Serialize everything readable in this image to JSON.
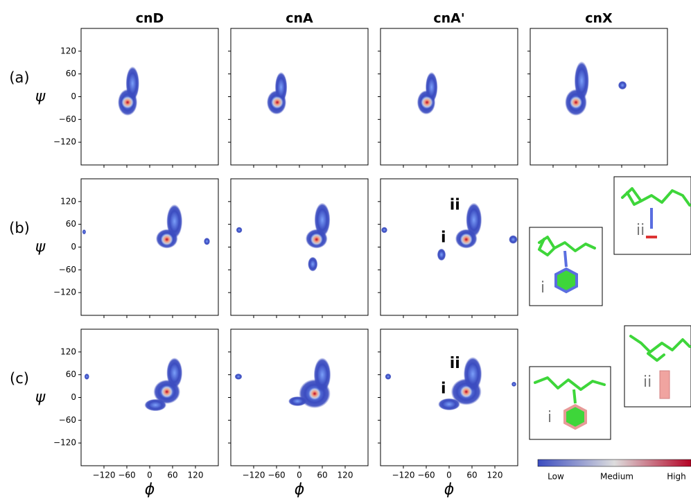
{
  "column_titles": [
    "cnD",
    "cnA",
    "cnA'",
    "cnX"
  ],
  "row_labels": [
    "(a)",
    "(b)",
    "(c)"
  ],
  "x_label": "ϕ",
  "y_label": "ψ",
  "axes": {
    "xlim": [
      -180,
      180
    ],
    "ylim": [
      -180,
      180
    ],
    "xticks": [
      {
        "value": -120,
        "label": "−120"
      },
      {
        "value": -60,
        "label": "−60"
      },
      0,
      60,
      120
    ],
    "yticks": [
      {
        "value": -120,
        "label": "−120"
      },
      {
        "value": -60,
        "label": "−60"
      },
      0,
      60,
      120
    ]
  },
  "colorbar": {
    "colormap": [
      "#3b4cc0",
      "#dddddd",
      "#b40426"
    ],
    "labels": [
      "Low",
      "Medium",
      "High"
    ]
  },
  "insets": [
    {
      "label": "i"
    },
    {
      "label": "ii"
    },
    {
      "label": "i"
    },
    {
      "label": "ii"
    }
  ],
  "chart_data": [
    {
      "type": "density",
      "peak": [
        -58,
        -15
      ],
      "clusters": [
        {
          "center": [
            -58,
            -15
          ],
          "spread": [
            16,
            22
          ]
        },
        {
          "center": [
            -45,
            35
          ],
          "spread": [
            11,
            28
          ]
        }
      ]
    },
    {
      "type": "density",
      "peak": [
        -58,
        -15
      ],
      "clusters": [
        {
          "center": [
            -60,
            -15
          ],
          "spread": [
            16,
            20
          ]
        },
        {
          "center": [
            -48,
            25
          ],
          "spread": [
            10,
            25
          ]
        }
      ]
    },
    {
      "type": "density",
      "peak": [
        -58,
        -15
      ],
      "clusters": [
        {
          "center": [
            -60,
            -15
          ],
          "spread": [
            15,
            20
          ]
        },
        {
          "center": [
            -46,
            25
          ],
          "spread": [
            10,
            25
          ]
        }
      ]
    },
    {
      "type": "density",
      "peak": [
        -60,
        -15
      ],
      "clusters": [
        {
          "center": [
            -60,
            -15
          ],
          "spread": [
            18,
            22
          ]
        },
        {
          "center": [
            -45,
            42
          ],
          "spread": [
            12,
            32
          ]
        },
        {
          "center": [
            62,
            30
          ],
          "spread": [
            7,
            7
          ]
        }
      ]
    },
    {
      "type": "density",
      "peak": [
        45,
        20
      ],
      "clusters": [
        {
          "center": [
            45,
            22
          ],
          "spread": [
            18,
            16
          ]
        },
        {
          "center": [
            65,
            68
          ],
          "spread": [
            13,
            28
          ]
        },
        {
          "center": [
            -172,
            40
          ],
          "spread": [
            3,
            4
          ]
        },
        {
          "center": [
            150,
            15
          ],
          "spread": [
            5,
            6
          ]
        }
      ]
    },
    {
      "type": "density",
      "peak": [
        45,
        20
      ],
      "clusters": [
        {
          "center": [
            45,
            22
          ],
          "spread": [
            18,
            16
          ]
        },
        {
          "center": [
            60,
            72
          ],
          "spread": [
            13,
            28
          ]
        },
        {
          "center": [
            35,
            -45
          ],
          "spread": [
            8,
            12
          ]
        },
        {
          "center": [
            -158,
            45
          ],
          "spread": [
            5,
            5
          ]
        }
      ]
    },
    {
      "type": "density",
      "peak": [
        45,
        20
      ],
      "clusters": [
        {
          "center": [
            45,
            22
          ],
          "spread": [
            18,
            16
          ]
        },
        {
          "center": [
            65,
            72
          ],
          "spread": [
            13,
            28
          ]
        },
        {
          "center": [
            -20,
            -20
          ],
          "spread": [
            7,
            10
          ]
        },
        {
          "center": [
            168,
            20
          ],
          "spread": [
            7,
            7
          ]
        },
        {
          "center": [
            -170,
            45
          ],
          "spread": [
            5,
            5
          ]
        }
      ],
      "annotations": [
        {
          "text": "i",
          "x": -15,
          "y": 24
        },
        {
          "text": "ii",
          "x": 15,
          "y": 110
        }
      ]
    },
    {
      "type": "density",
      "peak": [
        45,
        15
      ],
      "clusters": [
        {
          "center": [
            45,
            15
          ],
          "spread": [
            22,
            20
          ]
        },
        {
          "center": [
            65,
            65
          ],
          "spread": [
            13,
            25
          ]
        },
        {
          "center": [
            15,
            -20
          ],
          "spread": [
            18,
            10
          ]
        },
        {
          "center": [
            -165,
            55
          ],
          "spread": [
            4,
            5
          ]
        }
      ]
    },
    {
      "type": "density",
      "peak": [
        40,
        10
      ],
      "clusters": [
        {
          "center": [
            40,
            10
          ],
          "spread": [
            26,
            24
          ]
        },
        {
          "center": [
            60,
            60
          ],
          "spread": [
            14,
            28
          ]
        },
        {
          "center": [
            -5,
            -10
          ],
          "spread": [
            15,
            8
          ]
        },
        {
          "center": [
            -160,
            55
          ],
          "spread": [
            6,
            5
          ]
        }
      ]
    },
    {
      "type": "density",
      "peak": [
        45,
        15
      ],
      "clusters": [
        {
          "center": [
            45,
            15
          ],
          "spread": [
            25,
            22
          ]
        },
        {
          "center": [
            62,
            62
          ],
          "spread": [
            15,
            28
          ]
        },
        {
          "center": [
            0,
            -18
          ],
          "spread": [
            18,
            10
          ]
        },
        {
          "center": [
            -160,
            55
          ],
          "spread": [
            5,
            5
          ]
        },
        {
          "center": [
            170,
            35
          ],
          "spread": [
            4,
            4
          ]
        }
      ],
      "annotations": [
        {
          "text": "i",
          "x": -15,
          "y": 22
        },
        {
          "text": "ii",
          "x": 15,
          "y": 89
        }
      ]
    }
  ]
}
